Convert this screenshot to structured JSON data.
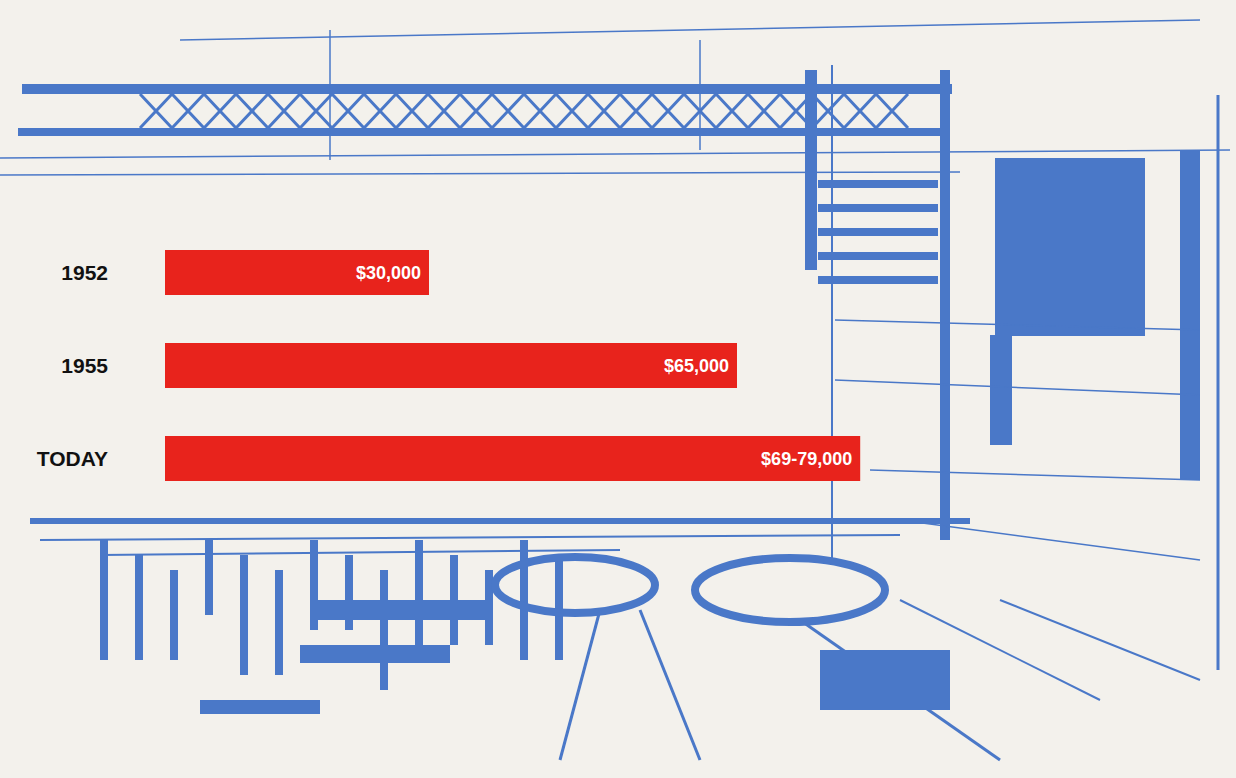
{
  "chart_data": {
    "type": "bar",
    "orientation": "horizontal",
    "categories": [
      "1952",
      "1955",
      "TODAY"
    ],
    "values": [
      30000,
      65000,
      79000
    ],
    "value_labels": [
      "$30,000",
      "$65,000",
      "$69-79,000"
    ],
    "color": "#e8231c",
    "xlim": [
      0,
      120000
    ],
    "data_labels": true,
    "tick_labels": "y",
    "grid": false
  }
}
